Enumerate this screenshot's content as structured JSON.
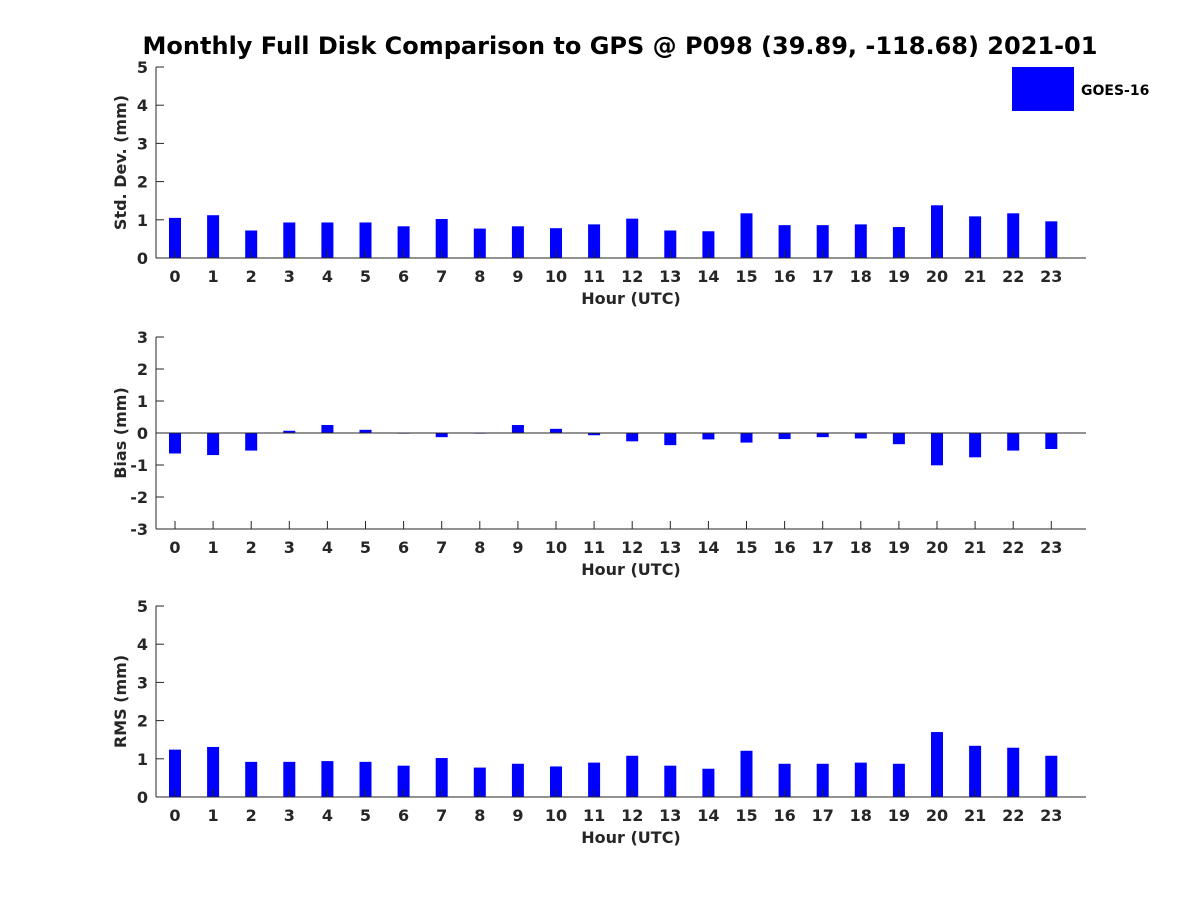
{
  "figure": {
    "title": "Monthly Full Disk Comparison to GPS @ P098 (39.89, -118.68) 2021-01"
  },
  "colors": {
    "bar": "#0000ff",
    "axis": "#262626",
    "text": "#262626"
  },
  "legend": {
    "label": "GOES-16",
    "placement": "top-right"
  },
  "chart_data": [
    {
      "type": "bar",
      "categories": [
        "0",
        "1",
        "2",
        "3",
        "4",
        "5",
        "6",
        "7",
        "8",
        "9",
        "10",
        "11",
        "12",
        "13",
        "14",
        "15",
        "16",
        "17",
        "18",
        "19",
        "20",
        "21",
        "22",
        "23"
      ],
      "series": [
        {
          "name": "GOES-16",
          "values": [
            1.05,
            1.12,
            0.72,
            0.93,
            0.93,
            0.93,
            0.83,
            1.02,
            0.77,
            0.83,
            0.78,
            0.88,
            1.03,
            0.72,
            0.7,
            1.17,
            0.86,
            0.86,
            0.88,
            0.81,
            1.38,
            1.09,
            1.17,
            0.96
          ]
        }
      ],
      "xlabel": "Hour (UTC)",
      "ylabel": "Std. Dev. (mm)",
      "ylim": [
        0,
        5
      ],
      "yticks": [
        0,
        1,
        2,
        3,
        4,
        5
      ],
      "grid": false
    },
    {
      "type": "bar",
      "categories": [
        "0",
        "1",
        "2",
        "3",
        "4",
        "5",
        "6",
        "7",
        "8",
        "9",
        "10",
        "11",
        "12",
        "13",
        "14",
        "15",
        "16",
        "17",
        "18",
        "19",
        "20",
        "21",
        "22",
        "23"
      ],
      "series": [
        {
          "name": "GOES-16",
          "values": [
            -0.64,
            -0.69,
            -0.55,
            0.07,
            0.25,
            0.1,
            -0.02,
            -0.13,
            -0.02,
            0.25,
            0.13,
            -0.07,
            -0.26,
            -0.38,
            -0.2,
            -0.3,
            -0.19,
            -0.13,
            -0.17,
            -0.35,
            -1.01,
            -0.76,
            -0.55,
            -0.5
          ]
        }
      ],
      "xlabel": "Hour (UTC)",
      "ylabel": "Bias (mm)",
      "ylim": [
        -3,
        3
      ],
      "yticks": [
        -3,
        -2,
        -1,
        0,
        1,
        2,
        3
      ],
      "grid": false
    },
    {
      "type": "bar",
      "categories": [
        "0",
        "1",
        "2",
        "3",
        "4",
        "5",
        "6",
        "7",
        "8",
        "9",
        "10",
        "11",
        "12",
        "13",
        "14",
        "15",
        "16",
        "17",
        "18",
        "19",
        "20",
        "21",
        "22",
        "23"
      ],
      "series": [
        {
          "name": "GOES-16",
          "values": [
            1.24,
            1.31,
            0.92,
            0.92,
            0.94,
            0.92,
            0.82,
            1.02,
            0.77,
            0.87,
            0.8,
            0.9,
            1.08,
            0.82,
            0.74,
            1.21,
            0.87,
            0.87,
            0.9,
            0.87,
            1.7,
            1.34,
            1.29,
            1.08
          ]
        }
      ],
      "xlabel": "Hour (UTC)",
      "ylabel": "RMS (mm)",
      "ylim": [
        0,
        5
      ],
      "yticks": [
        0,
        1,
        2,
        3,
        4,
        5
      ],
      "grid": false
    }
  ]
}
